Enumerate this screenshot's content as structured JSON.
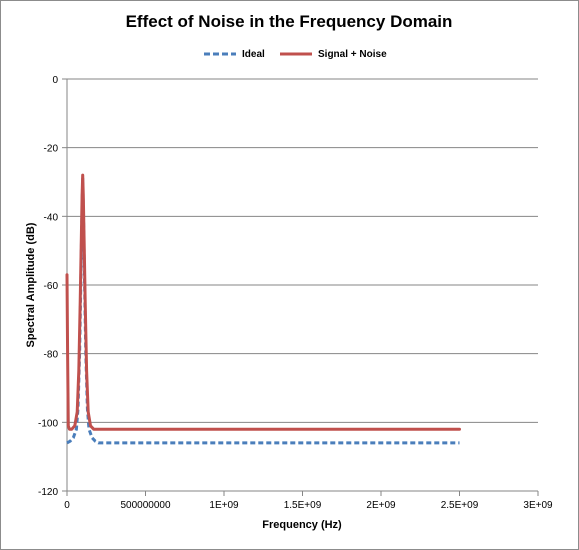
{
  "chart_data": {
    "type": "line",
    "title": "Effect of Noise in the Frequency Domain",
    "xlabel": "Frequency (Hz)",
    "ylabel": "Spectral Amplitude (dB)",
    "xlim": [
      0,
      3000000000
    ],
    "ylim": [
      -120,
      0
    ],
    "x_ticks": [
      0,
      500000000,
      1000000000,
      1500000000,
      2000000000,
      2500000000,
      3000000000
    ],
    "x_tick_labels": [
      "0",
      "500000000",
      "1E+09",
      "1.5E+09",
      "2E+09",
      "2.5E+09",
      "3E+09"
    ],
    "y_ticks": [
      0,
      -20,
      -40,
      -60,
      -80,
      -100,
      -120
    ],
    "y_tick_labels": [
      "0",
      "-20",
      "-40",
      "-60",
      "-80",
      "-100",
      "-120"
    ],
    "grid": "horizontal",
    "legend_position": "top",
    "series": [
      {
        "name": "Ideal",
        "color": "#4a7ebb",
        "style": "dashed",
        "points": [
          [
            0,
            -106
          ],
          [
            20000000,
            -105.5
          ],
          [
            40000000,
            -104.5
          ],
          [
            60000000,
            -102
          ],
          [
            70000000,
            -96
          ],
          [
            80000000,
            -80
          ],
          [
            88000000,
            -60
          ],
          [
            94000000,
            -42
          ],
          [
            100000000,
            -29
          ],
          [
            106000000,
            -42
          ],
          [
            112000000,
            -60
          ],
          [
            120000000,
            -80
          ],
          [
            130000000,
            -96
          ],
          [
            140000000,
            -102
          ],
          [
            160000000,
            -104.5
          ],
          [
            180000000,
            -105.5
          ],
          [
            200000000,
            -106
          ],
          [
            300000000,
            -106
          ],
          [
            500000000,
            -106
          ],
          [
            700000000,
            -106
          ],
          [
            1000000000,
            -106
          ],
          [
            1250000000,
            -106
          ],
          [
            1500000000,
            -106
          ],
          [
            1750000000,
            -106
          ],
          [
            2000000000,
            -106
          ],
          [
            2250000000,
            -106
          ],
          [
            2500000000,
            -106
          ]
        ]
      },
      {
        "name": "Signal + Noise",
        "color": "#c0504d",
        "style": "solid",
        "points": [
          [
            0,
            -57
          ],
          [
            4000000,
            -80
          ],
          [
            8000000,
            -101
          ],
          [
            15000000,
            -102
          ],
          [
            30000000,
            -102
          ],
          [
            50000000,
            -101
          ],
          [
            65000000,
            -97
          ],
          [
            75000000,
            -85
          ],
          [
            84000000,
            -65
          ],
          [
            90000000,
            -50
          ],
          [
            96000000,
            -34
          ],
          [
            100000000,
            -28
          ],
          [
            104000000,
            -34
          ],
          [
            110000000,
            -50
          ],
          [
            116000000,
            -65
          ],
          [
            125000000,
            -85
          ],
          [
            135000000,
            -97
          ],
          [
            150000000,
            -101
          ],
          [
            170000000,
            -102
          ],
          [
            300000000,
            -102
          ],
          [
            500000000,
            -102
          ],
          [
            750000000,
            -102
          ],
          [
            1000000000,
            -102
          ],
          [
            1250000000,
            -102
          ],
          [
            1500000000,
            -102
          ],
          [
            1750000000,
            -102
          ],
          [
            2000000000,
            -102
          ],
          [
            2250000000,
            -102
          ],
          [
            2500000000,
            -102
          ]
        ]
      }
    ]
  }
}
